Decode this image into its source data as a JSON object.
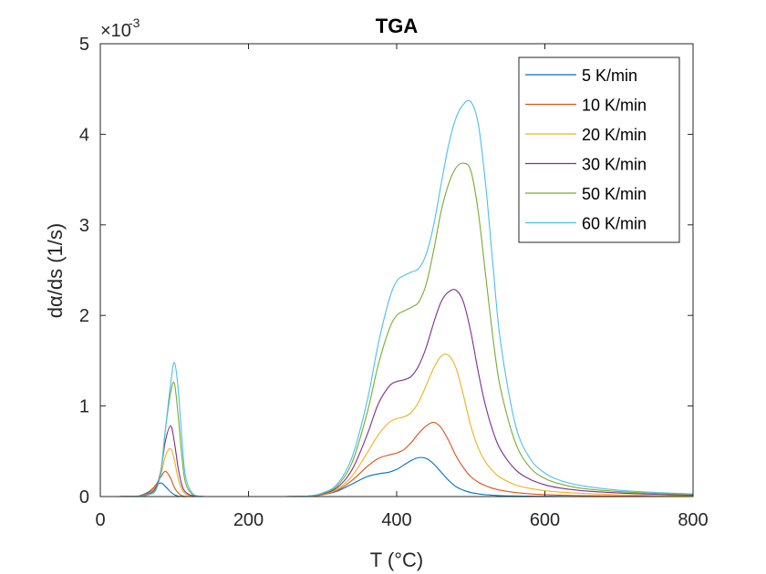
{
  "chart_data": {
    "type": "line",
    "title": "TGA",
    "xlabel": "T (°C)",
    "ylabel": "dα/ds (1/s)",
    "y_exponent_label": "×10",
    "y_exponent_power": "-3",
    "xlim": [
      0,
      800
    ],
    "ylim": [
      0,
      5
    ],
    "xticks": [
      0,
      200,
      400,
      600,
      800
    ],
    "yticks": [
      0,
      1,
      2,
      3,
      4,
      5
    ],
    "xtick_labels": [
      "0",
      "200",
      "400",
      "600",
      "800"
    ],
    "ytick_labels": [
      "0",
      "1",
      "2",
      "3",
      "4",
      "5"
    ],
    "grid": false,
    "legend_position": "top-right",
    "x": [
      25,
      50,
      65,
      75,
      82,
      88,
      95,
      100,
      105,
      110,
      115,
      125,
      140,
      160,
      200,
      250,
      280,
      300,
      320,
      340,
      360,
      375,
      390,
      400,
      410,
      420,
      430,
      440,
      450,
      460,
      470,
      480,
      490,
      500,
      510,
      520,
      530,
      540,
      560,
      580,
      600,
      620,
      650,
      700,
      750,
      800
    ],
    "series": [
      {
        "name": "5 K/min",
        "color": "#0072BD",
        "values": [
          0,
          0.003,
          0.05,
          0.12,
          0.15,
          0.11,
          0.05,
          0.02,
          0.005,
          0,
          0,
          0,
          0,
          0,
          0,
          0,
          0.005,
          0.02,
          0.06,
          0.14,
          0.22,
          0.25,
          0.27,
          0.3,
          0.35,
          0.4,
          0.43,
          0.42,
          0.36,
          0.27,
          0.18,
          0.11,
          0.07,
          0.045,
          0.03,
          0.02,
          0.015,
          0.01,
          0.006,
          0.004,
          0.003,
          0.002,
          0.001,
          0.001,
          0,
          0
        ]
      },
      {
        "name": "10 K/min",
        "color": "#D95319",
        "values": [
          0,
          0.003,
          0.04,
          0.13,
          0.22,
          0.28,
          0.2,
          0.1,
          0.04,
          0.01,
          0.003,
          0,
          0,
          0,
          0,
          0,
          0.005,
          0.02,
          0.07,
          0.18,
          0.33,
          0.42,
          0.46,
          0.48,
          0.52,
          0.6,
          0.7,
          0.78,
          0.82,
          0.76,
          0.62,
          0.45,
          0.32,
          0.22,
          0.16,
          0.12,
          0.09,
          0.07,
          0.045,
          0.03,
          0.022,
          0.016,
          0.01,
          0.006,
          0.003,
          0.002
        ]
      },
      {
        "name": "20 K/min",
        "color": "#EDB120",
        "values": [
          0,
          0.002,
          0.03,
          0.11,
          0.25,
          0.45,
          0.53,
          0.4,
          0.2,
          0.08,
          0.03,
          0.005,
          0,
          0,
          0,
          0,
          0.005,
          0.025,
          0.08,
          0.23,
          0.48,
          0.68,
          0.82,
          0.86,
          0.88,
          0.93,
          1.05,
          1.23,
          1.42,
          1.55,
          1.56,
          1.42,
          1.12,
          0.78,
          0.54,
          0.38,
          0.28,
          0.21,
          0.13,
          0.09,
          0.065,
          0.05,
          0.035,
          0.02,
          0.012,
          0.008
        ]
      },
      {
        "name": "30 K/min",
        "color": "#7E2F8E",
        "values": [
          0,
          0.002,
          0.025,
          0.1,
          0.3,
          0.62,
          0.78,
          0.6,
          0.32,
          0.13,
          0.05,
          0.008,
          0,
          0,
          0,
          0,
          0.005,
          0.03,
          0.1,
          0.3,
          0.68,
          1.02,
          1.22,
          1.27,
          1.29,
          1.33,
          1.45,
          1.65,
          1.92,
          2.15,
          2.26,
          2.28,
          2.15,
          1.82,
          1.38,
          1.0,
          0.72,
          0.52,
          0.3,
          0.19,
          0.13,
          0.095,
          0.065,
          0.04,
          0.025,
          0.015
        ]
      },
      {
        "name": "50 K/min",
        "color": "#77AC30",
        "values": [
          0,
          0.002,
          0.02,
          0.08,
          0.3,
          0.75,
          1.15,
          1.25,
          0.9,
          0.45,
          0.15,
          0.02,
          0,
          0,
          0,
          0,
          0.005,
          0.035,
          0.12,
          0.38,
          0.92,
          1.45,
          1.85,
          2.0,
          2.05,
          2.09,
          2.15,
          2.35,
          2.72,
          3.15,
          3.45,
          3.63,
          3.68,
          3.6,
          3.15,
          2.45,
          1.75,
          1.2,
          0.6,
          0.32,
          0.2,
          0.14,
          0.09,
          0.055,
          0.035,
          0.025
        ]
      },
      {
        "name": "60 K/min",
        "color": "#4DBEEE",
        "values": [
          0,
          0.002,
          0.02,
          0.07,
          0.28,
          0.75,
          1.25,
          1.48,
          1.2,
          0.65,
          0.22,
          0.03,
          0,
          0,
          0,
          0,
          0.005,
          0.04,
          0.14,
          0.44,
          1.05,
          1.68,
          2.18,
          2.38,
          2.44,
          2.48,
          2.52,
          2.68,
          3.0,
          3.45,
          3.88,
          4.18,
          4.33,
          4.36,
          4.12,
          3.45,
          2.55,
          1.72,
          0.8,
          0.42,
          0.26,
          0.18,
          0.12,
          0.07,
          0.045,
          0.03
        ]
      }
    ]
  }
}
